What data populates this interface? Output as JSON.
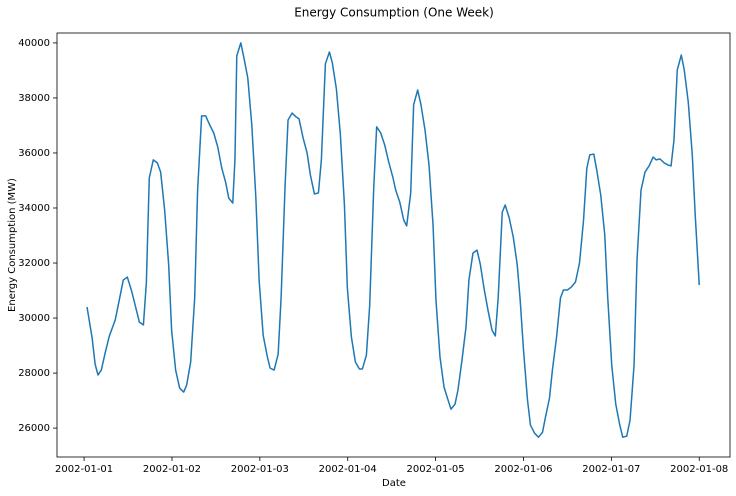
{
  "chart_data": {
    "type": "line",
    "title": "Energy Consumption (One Week)",
    "x_label": "Date",
    "y_label": "Energy Consumption (MW)",
    "x": [
      0.8,
      2.2,
      3.0,
      3.8,
      4.7,
      5.8,
      6.9,
      8.5,
      9.6,
      10.7,
      11.8,
      12.9,
      14.0,
      15.1,
      16.2,
      17.0,
      17.8,
      18.9,
      20.0,
      20.9,
      22.0,
      23.1,
      23.9,
      25.0,
      26.1,
      27.2,
      28.0,
      29.1,
      30.2,
      31.0,
      32.1,
      33.2,
      34.3,
      35.4,
      36.5,
      37.6,
      38.7,
      39.5,
      40.6,
      41.2,
      41.7,
      42.8,
      43.6,
      44.7,
      45.8,
      46.9,
      47.8,
      48.9,
      50.0,
      50.8,
      51.9,
      53.0,
      53.8,
      54.9,
      55.7,
      56.8,
      57.9,
      58.7,
      59.8,
      60.9,
      61.8,
      62.9,
      64.0,
      64.8,
      65.9,
      67.0,
      67.8,
      68.9,
      70.0,
      71.1,
      71.9,
      73.0,
      74.1,
      75.2,
      76.0,
      77.1,
      78.0,
      79.1,
      79.9,
      81.0,
      82.1,
      83.2,
      84.3,
      85.1,
      86.2,
      87.3,
      88.1,
      89.2,
      90.0,
      91.1,
      92.0,
      93.1,
      94.2,
      95.3,
      96.1,
      97.2,
      98.3,
      99.4,
      100.2,
      101.3,
      102.1,
      103.2,
      104.3,
      105.1,
      106.2,
      107.3,
      108.2,
      109.3,
      110.3,
      111.4,
      112.3,
      113.1,
      114.2,
      115.0,
      116.1,
      117.2,
      118.3,
      119.1,
      120.0,
      121.1,
      121.9,
      123.0,
      124.1,
      125.2,
      126.0,
      127.1,
      127.9,
      129.0,
      130.1,
      130.9,
      132.0,
      133.1,
      134.2,
      135.3,
      136.4,
      137.3,
      138.1,
      139.2,
      140.0,
      141.1,
      142.2,
      143.0,
      144.1,
      145.2,
      146.3,
      147.1,
      148.2,
      149.1,
      150.2,
      151.0,
      152.1,
      153.2,
      154.3,
      155.4,
      156.2,
      157.3,
      158.4,
      159.5,
      160.3,
      161.1,
      162.0,
      163.1,
      163.9,
      165.0,
      166.1,
      166.9,
      168.0
    ],
    "series": [
      {
        "name": "Energy Consumption",
        "color": "#1f77b4",
        "values": [
          30400,
          29270,
          28330,
          27930,
          28110,
          28760,
          29350,
          29930,
          30650,
          31380,
          31490,
          31020,
          30440,
          29850,
          29750,
          31270,
          35090,
          35750,
          35640,
          35310,
          33930,
          31930,
          29560,
          28110,
          27450,
          27310,
          27560,
          28400,
          30730,
          34650,
          37350,
          37350,
          37020,
          36730,
          36220,
          35450,
          34910,
          34360,
          34180,
          35750,
          39530,
          40000,
          39490,
          38730,
          37020,
          34400,
          31380,
          29380,
          28620,
          28180,
          28110,
          28690,
          30730,
          34840,
          37200,
          37450,
          37310,
          37240,
          36550,
          36000,
          35200,
          34510,
          34550,
          35750,
          39240,
          39670,
          39270,
          38330,
          36650,
          34110,
          31090,
          29310,
          28400,
          28150,
          28150,
          28650,
          30470,
          34730,
          36950,
          36730,
          36290,
          35670,
          35130,
          34650,
          34220,
          33560,
          33350,
          34550,
          37750,
          38290,
          37750,
          36840,
          35560,
          33380,
          30650,
          28580,
          27490,
          27020,
          26690,
          26870,
          27380,
          28470,
          29670,
          31380,
          32360,
          32470,
          31960,
          31020,
          30290,
          29560,
          29350,
          30760,
          33850,
          34110,
          33640,
          32950,
          31930,
          30650,
          28840,
          27020,
          26110,
          25820,
          25670,
          25850,
          26400,
          27090,
          28110,
          29270,
          30730,
          31020,
          31020,
          31130,
          31310,
          32000,
          33560,
          35450,
          35930,
          35960,
          35380,
          34470,
          33020,
          30760,
          28290,
          26870,
          26110,
          25670,
          25710,
          26290,
          28290,
          32110,
          34650,
          35310,
          35530,
          35850,
          35750,
          35780,
          35640,
          35560,
          35530,
          36470,
          39020,
          39560,
          39020,
          37850,
          35930,
          33750,
          31200
        ]
      }
    ],
    "xlim": [
      -7.4,
      176.4
    ],
    "xticks": [
      {
        "value": 0,
        "label": "2002-01-01"
      },
      {
        "value": 24,
        "label": "2002-01-02"
      },
      {
        "value": 48,
        "label": "2002-01-03"
      },
      {
        "value": 72,
        "label": "2002-01-04"
      },
      {
        "value": 96,
        "label": "2002-01-05"
      },
      {
        "value": 120,
        "label": "2002-01-06"
      },
      {
        "value": 144,
        "label": "2002-01-07"
      },
      {
        "value": 168,
        "label": "2002-01-08"
      }
    ],
    "ylim": [
      24950,
      40360
    ],
    "yticks": [
      26000,
      28000,
      30000,
      32000,
      34000,
      36000,
      38000,
      40000
    ],
    "grid": false
  }
}
